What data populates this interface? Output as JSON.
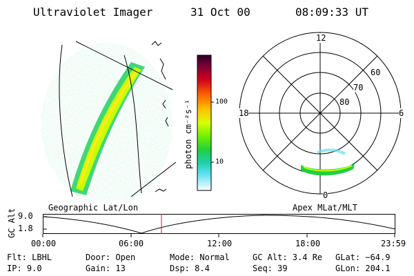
{
  "header": {
    "title": "Ultraviolet Imager",
    "date": "31 Oct 00",
    "time": "08:09:33 UT"
  },
  "colorbar": {
    "label": "photon cm⁻²s⁻¹",
    "ticks": [
      "100",
      "10"
    ],
    "colors": [
      "#2a0020",
      "#7a0038",
      "#b0002a",
      "#e00010",
      "#ff5a00",
      "#ff9a00",
      "#ffd800",
      "#c8ff00",
      "#70f000",
      "#20d040",
      "#00c8a0",
      "#30d8e0",
      "#90e8f0",
      "#d8f0f8",
      "#ffffff"
    ]
  },
  "polar_plot": {
    "mlt_labels": [
      "12",
      "18",
      "6",
      "0"
    ],
    "lat_labels": [
      "60",
      "70",
      "80"
    ]
  },
  "timeline": {
    "left_label": "Geographic Lat/Lon",
    "right_label": "Apex MLat/MLT",
    "axis_label": "GC Alt",
    "y_ticks": [
      "9.0",
      "1.8"
    ],
    "x_ticks": [
      "00:00",
      "06:00",
      "12:00",
      "18:00",
      "23:59"
    ],
    "marker_color": "#c02020"
  },
  "info": {
    "flt": "Flt: LBHL",
    "ip": "IP:  9.0",
    "door": "Door: Open",
    "gain": "Gain: 13",
    "mode": "Mode: Normal",
    "dsp": "Dsp:     8.4",
    "gcalt": "GC Alt: 3.4 Re",
    "seq": "Seq: 39",
    "glat": "GLat: −64.9",
    "glon": "GLon: 204.1"
  }
}
